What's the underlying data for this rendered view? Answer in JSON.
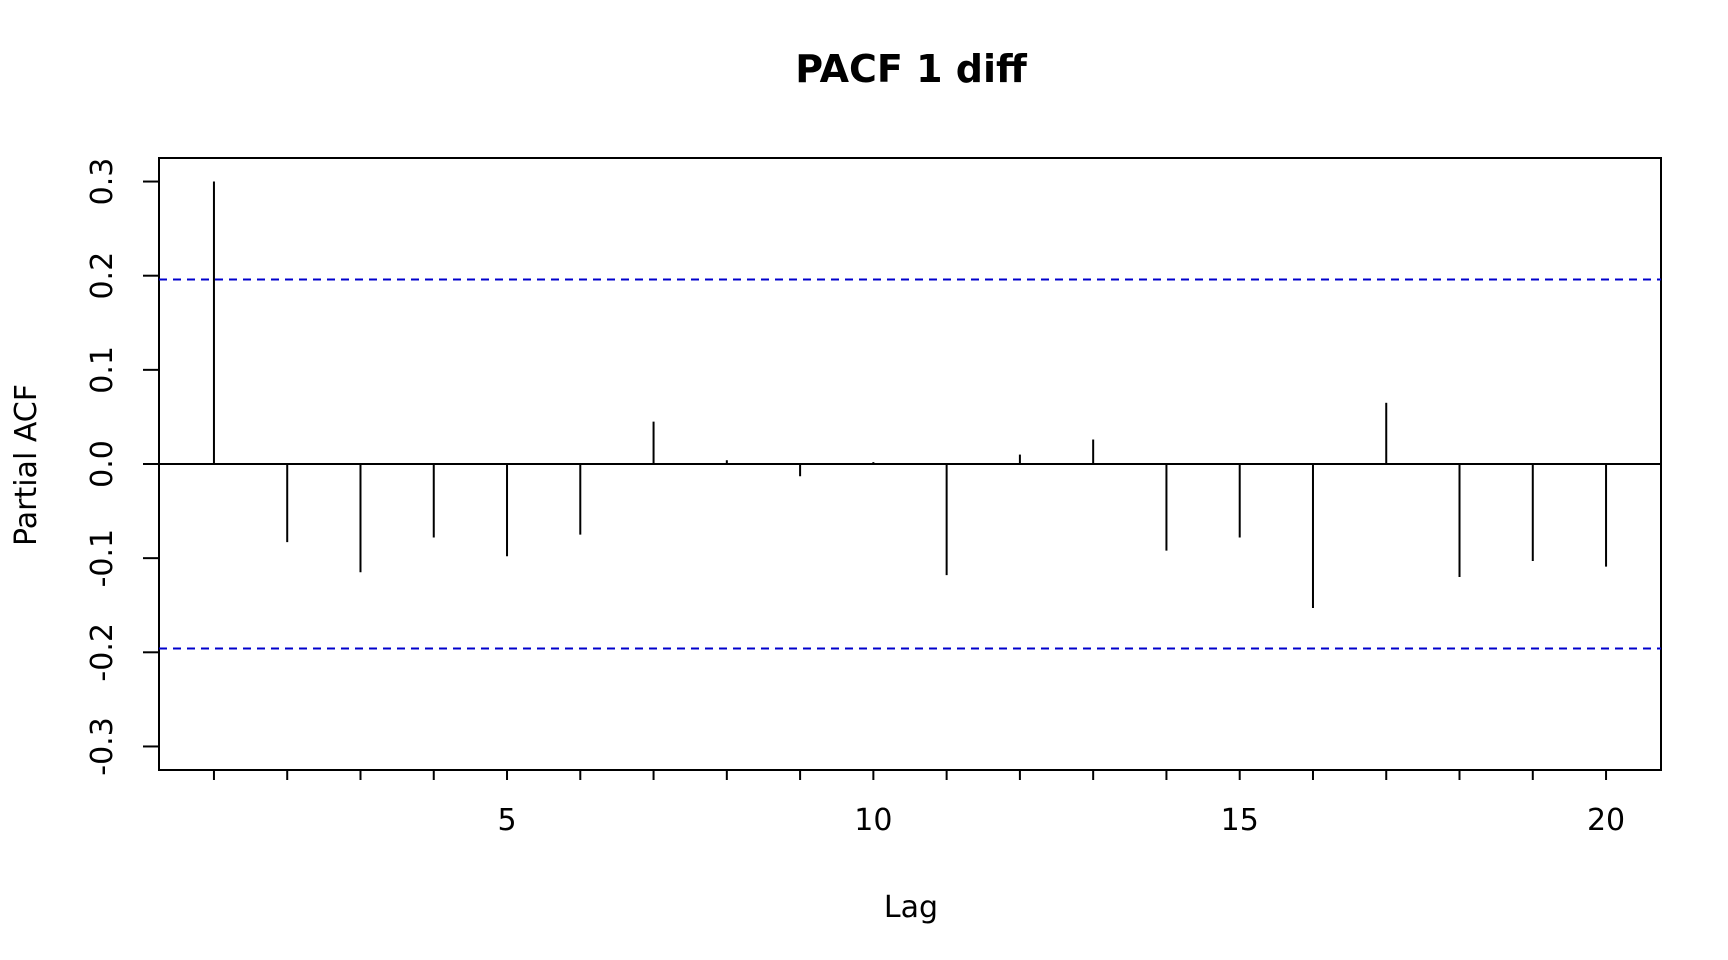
{
  "chart_data": {
    "type": "bar",
    "title": "PACF 1 diff",
    "xlabel": "Lag",
    "ylabel": "Partial ACF",
    "x": [
      1,
      2,
      3,
      4,
      5,
      6,
      7,
      8,
      9,
      10,
      11,
      12,
      13,
      14,
      15,
      16,
      17,
      18,
      19,
      20
    ],
    "values": [
      0.3,
      -0.083,
      -0.115,
      -0.078,
      -0.098,
      -0.075,
      0.045,
      0.004,
      -0.013,
      0.002,
      -0.118,
      0.01,
      0.026,
      -0.092,
      -0.078,
      -0.153,
      0.065,
      -0.12,
      -0.103,
      -0.109
    ],
    "xlim": [
      0.25,
      20.75
    ],
    "ylim": [
      -0.325,
      0.325
    ],
    "x_tick_values": [
      1,
      2,
      3,
      4,
      5,
      6,
      7,
      8,
      9,
      10,
      11,
      12,
      13,
      14,
      15,
      16,
      17,
      18,
      19,
      20
    ],
    "x_tick_labels": [
      "",
      "",
      "",
      "",
      "5",
      "",
      "",
      "",
      "",
      "10",
      "",
      "",
      "",
      "",
      "15",
      "",
      "",
      "",
      "",
      "20"
    ],
    "y_tick_values": [
      -0.3,
      -0.2,
      -0.1,
      0.0,
      0.1,
      0.2,
      0.3
    ],
    "y_tick_labels": [
      "-0.3",
      "-0.2",
      "-0.1",
      "0.0",
      "0.1",
      "0.2",
      "0.3"
    ],
    "confidence_bounds": [
      0.196,
      -0.196
    ],
    "zero_line": 0,
    "grid": false,
    "colors": {
      "spikes": "#000000",
      "confidence": "#0000cc",
      "frame": "#000000"
    }
  }
}
